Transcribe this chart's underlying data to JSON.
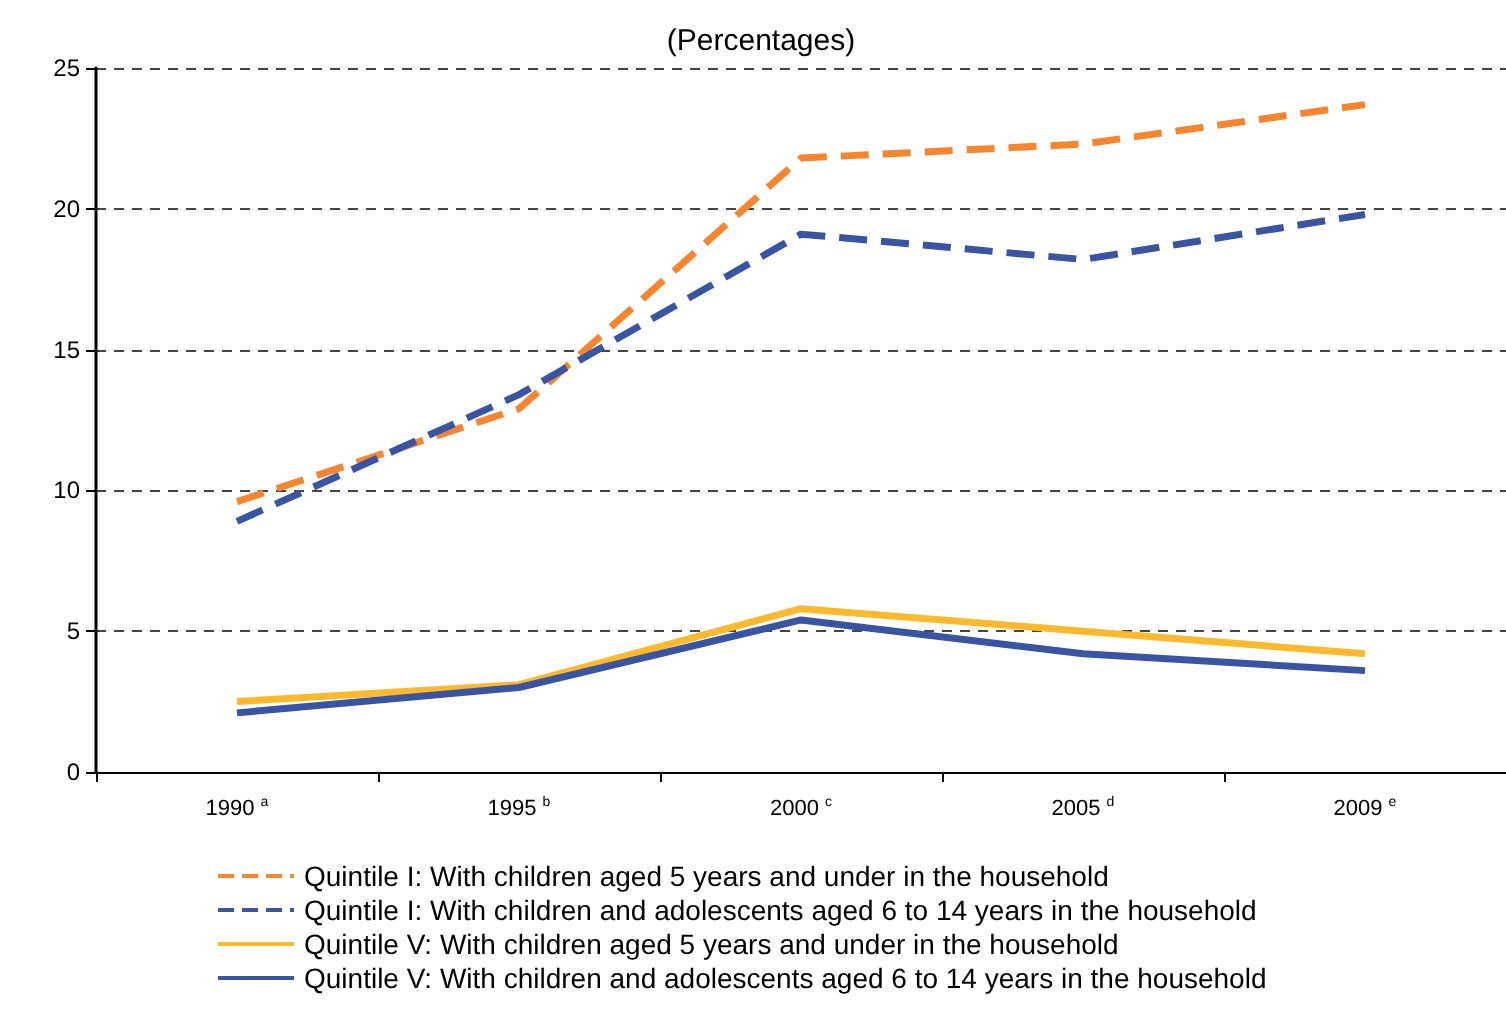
{
  "chart_data": {
    "type": "line",
    "title": "(Percentages)",
    "categories": [
      "1990$^{a}$",
      "1995$^{b}$",
      "2000$^{c}$",
      "2005$^{d}$",
      "2009$^{e}$"
    ],
    "series": [
      {
        "name": "Quintile I: With children aged 5 years and under in the household",
        "color": "#f7852e",
        "line_style": "dashed",
        "values": [
          9.6,
          12.9,
          21.8,
          22.3,
          23.7
        ]
      },
      {
        "name": "Quintile I: With children and adolescents aged 6 to 14 years in the household",
        "color": "#3a54a4",
        "line_style": "dashed",
        "values": [
          8.9,
          13.4,
          19.1,
          18.2,
          19.8
        ]
      },
      {
        "name": "Quintile V: With children aged 5 years and under in the household",
        "color": "#fdb92c",
        "line_style": "solid",
        "values": [
          2.5,
          3.1,
          5.8,
          5.0,
          4.2
        ]
      },
      {
        "name": "Quintile V: With children and adolescents aged 6 to 14 years in the household",
        "color": "#3a54a4",
        "line_style": "solid",
        "values": [
          2.1,
          3.0,
          5.4,
          4.2,
          3.6
        ]
      }
    ],
    "ylim": [
      0,
      25
    ],
    "yticks": [
      0,
      5,
      10,
      15,
      20,
      25
    ],
    "grid": "y",
    "legend": "bottom",
    "marker": "none"
  }
}
